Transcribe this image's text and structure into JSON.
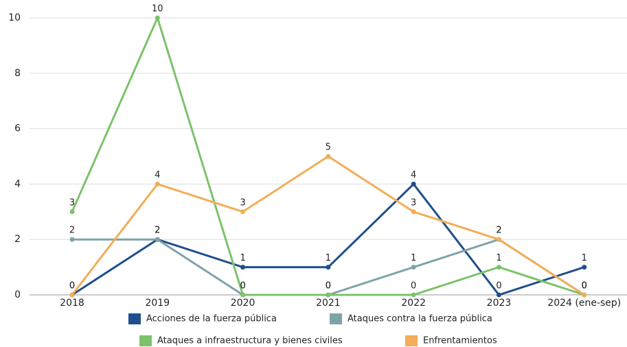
{
  "chart_data": {
    "type": "line",
    "categories": [
      "2018",
      "2019",
      "2020",
      "2021",
      "2022",
      "2023",
      "2024 (ene-sep)"
    ],
    "series": [
      {
        "name": "Acciones de la fuerza pública",
        "color": "#1f4e8c",
        "values": [
          0,
          2,
          1,
          1,
          4,
          0,
          1
        ]
      },
      {
        "name": "Ataques contra la fuerza pública",
        "color": "#7fa2aa",
        "values": [
          2,
          2,
          0,
          0,
          1,
          2,
          0
        ]
      },
      {
        "name": "Ataques a infraestructura y bienes civiles",
        "color": "#7cc26a",
        "values": [
          3,
          10,
          0,
          0,
          0,
          1,
          0
        ]
      },
      {
        "name": "Enfrentamientos",
        "color": "#f3ad56",
        "values": [
          0,
          4,
          3,
          5,
          3,
          2,
          0
        ]
      }
    ],
    "ylim": [
      0,
      10
    ],
    "yticks": [
      0,
      2,
      4,
      6,
      8,
      10
    ],
    "grid": true,
    "legend": "bottom"
  }
}
